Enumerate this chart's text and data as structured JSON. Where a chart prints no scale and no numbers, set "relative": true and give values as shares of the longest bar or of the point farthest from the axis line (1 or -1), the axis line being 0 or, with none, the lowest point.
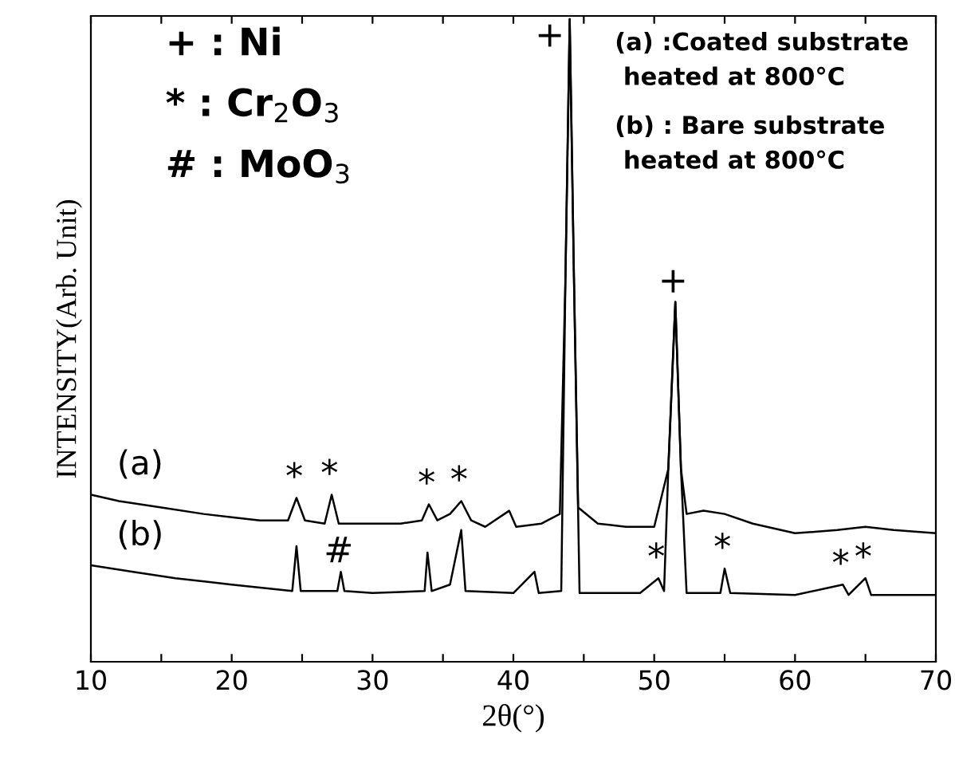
{
  "chart_data": {
    "type": "line",
    "relative": true,
    "xlabel": "2θ(°)",
    "ylabel": "INTENSITY(Arb. Unit)",
    "xlim": [
      10,
      70
    ],
    "xticks": [
      10,
      {
        "value": 15,
        "label": null
      },
      20,
      {
        "value": 25,
        "label": null
      },
      30,
      {
        "value": 35,
        "label": null
      },
      40,
      {
        "value": 45,
        "label": null
      },
      50,
      {
        "value": 55,
        "label": null
      },
      60,
      {
        "value": 65,
        "label": null
      },
      70
    ],
    "tick_labels": "x",
    "grid": false,
    "legend": false,
    "marker": "none",
    "line_style": "solid",
    "series": [
      {
        "name": "(a)",
        "color": "#000000",
        "x": [
          10,
          12,
          15,
          18,
          20,
          22,
          24,
          24.6,
          25.2,
          26.6,
          27.1,
          27.6,
          30,
          32,
          33.5,
          34,
          34.6,
          35.5,
          36.3,
          37,
          38,
          39.7,
          40.2,
          42,
          43.3,
          43.7,
          44.0,
          44.3,
          44.6,
          46,
          48,
          50,
          51.0,
          51.5,
          51.9,
          52.3,
          53.5,
          55,
          57,
          60,
          63,
          65,
          67,
          70
        ],
        "values": [
          0.26,
          0.25,
          0.24,
          0.23,
          0.225,
          0.22,
          0.22,
          0.255,
          0.22,
          0.215,
          0.26,
          0.215,
          0.215,
          0.215,
          0.22,
          0.245,
          0.22,
          0.23,
          0.25,
          0.22,
          0.21,
          0.235,
          0.21,
          0.215,
          0.23,
          0.6,
          1.0,
          0.6,
          0.24,
          0.215,
          0.21,
          0.21,
          0.3,
          0.56,
          0.3,
          0.23,
          0.235,
          0.23,
          0.215,
          0.2,
          0.205,
          0.21,
          0.205,
          0.2
        ]
      },
      {
        "name": "(b)",
        "color": "#000000",
        "x": [
          10,
          13,
          16,
          20,
          24.3,
          24.6,
          24.9,
          27.5,
          27.75,
          28,
          30,
          33.7,
          33.9,
          34.2,
          35.5,
          36.3,
          36.6,
          40,
          41.5,
          41.8,
          43.4,
          43.7,
          44.0,
          44.3,
          44.7,
          49,
          50.3,
          50.7,
          51.0,
          51.5,
          51.9,
          52.3,
          54.7,
          55,
          55.4,
          60,
          63.4,
          63.8,
          65,
          65.4,
          70
        ],
        "values": [
          0.15,
          0.14,
          0.13,
          0.12,
          0.11,
          0.18,
          0.11,
          0.11,
          0.14,
          0.11,
          0.107,
          0.11,
          0.17,
          0.11,
          0.12,
          0.205,
          0.11,
          0.107,
          0.14,
          0.107,
          0.11,
          0.6,
          1.0,
          0.6,
          0.107,
          0.107,
          0.13,
          0.11,
          0.3,
          0.56,
          0.3,
          0.107,
          0.107,
          0.145,
          0.107,
          0.104,
          0.12,
          0.104,
          0.13,
          0.104,
          0.104
        ]
      }
    ],
    "annotations": [
      "+ : Ni",
      "* : Cr$_{2}$O$_{3}$",
      "# : MoO$_{3}$",
      "(a) :Coated substrate\n heated at 800°C",
      "(b) : Bare substrate\n heated at 800°C",
      {
        "text": "+",
        "x": 44.0,
        "y": 1.0
      },
      {
        "text": "+",
        "x": 51.5,
        "y": 0.56
      },
      {
        "text": "*",
        "x": 24.6,
        "y": 0.255
      },
      {
        "text": "*",
        "x": 27.1,
        "y": 0.26
      },
      {
        "text": "*",
        "x": 34,
        "y": 0.245
      },
      {
        "text": "*",
        "x": 36.3,
        "y": 0.25
      },
      {
        "text": "#",
        "x": 27.75,
        "y": 0.14
      },
      {
        "text": "*",
        "x": 50.3,
        "y": 0.13
      },
      {
        "text": "*",
        "x": 55,
        "y": 0.145
      },
      {
        "text": "*",
        "x": 63.4,
        "y": 0.12
      },
      {
        "text": "*",
        "x": 65,
        "y": 0.13
      }
    ]
  }
}
